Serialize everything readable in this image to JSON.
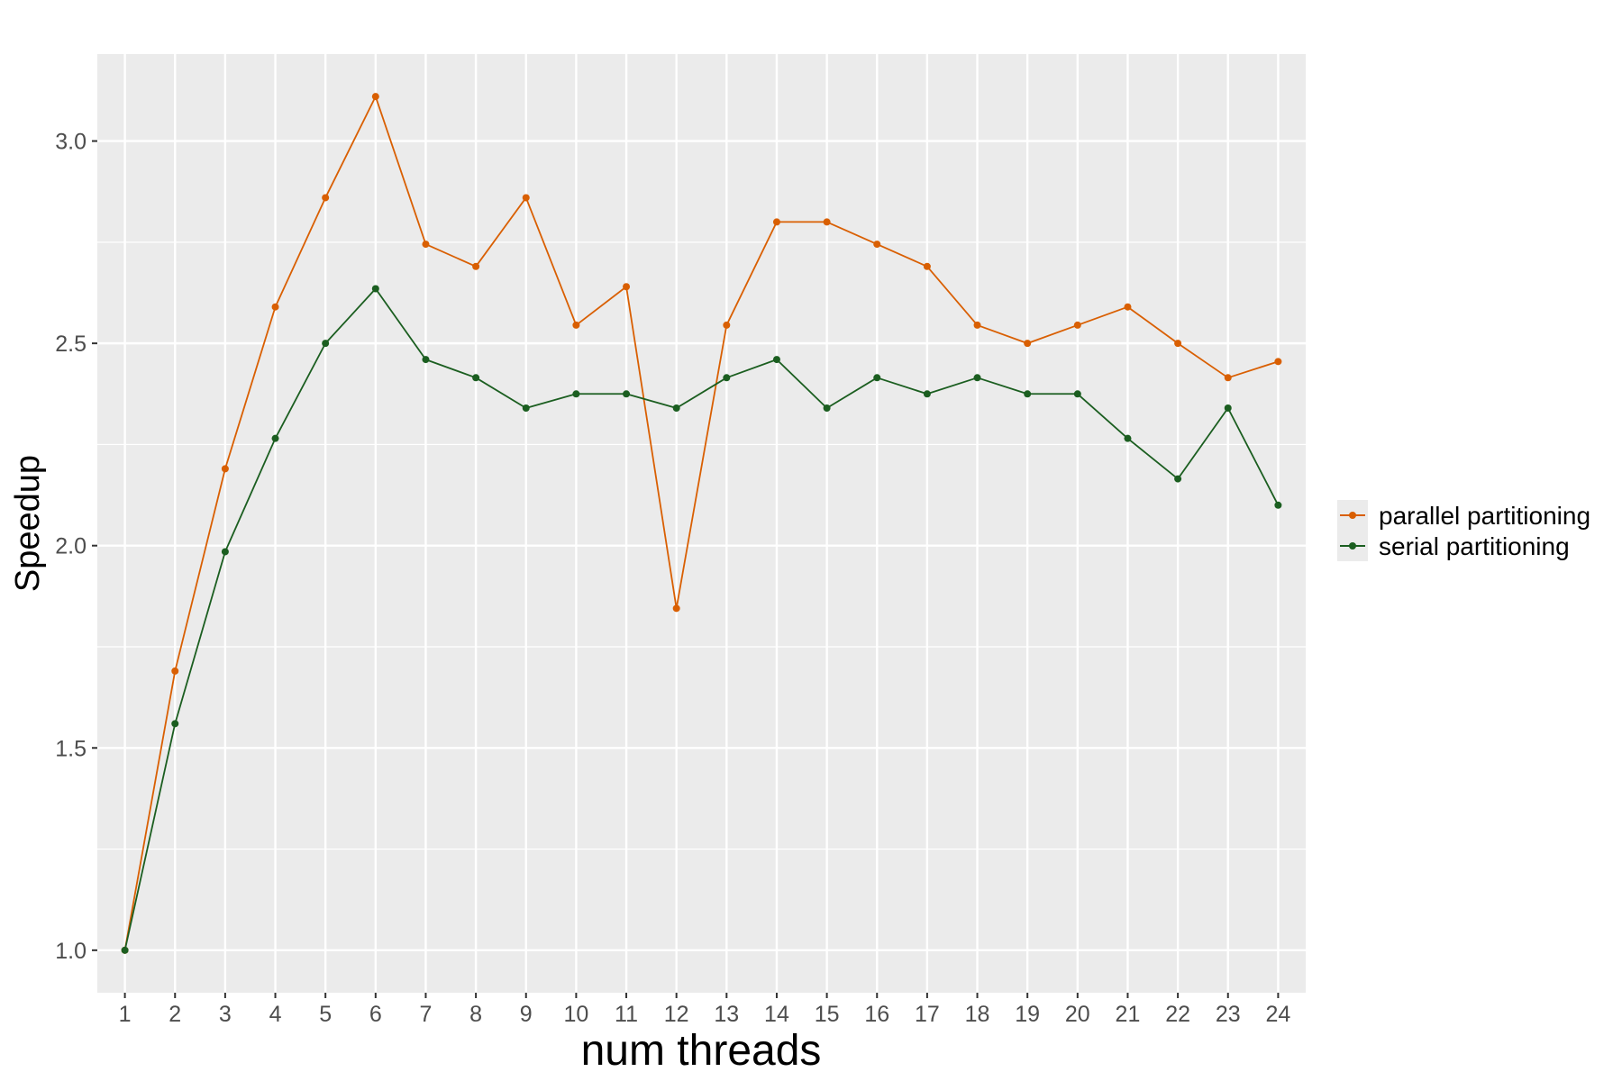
{
  "chart_data": {
    "type": "line",
    "xlabel": "num threads",
    "ylabel": "Speedup",
    "x": [
      1,
      2,
      3,
      4,
      5,
      6,
      7,
      8,
      9,
      10,
      11,
      12,
      13,
      14,
      15,
      16,
      17,
      18,
      19,
      20,
      21,
      22,
      23,
      24
    ],
    "x_tick_labels": [
      "1",
      "2",
      "3",
      "4",
      "5",
      "6",
      "7",
      "8",
      "9",
      "10",
      "11",
      "12",
      "13",
      "14",
      "15",
      "16",
      "17",
      "18",
      "19",
      "20",
      "21",
      "22",
      "23",
      "24"
    ],
    "y_ticks": [
      1.0,
      1.5,
      2.0,
      2.5,
      3.0
    ],
    "y_tick_labels": [
      "1.0",
      "1.5",
      "2.0",
      "2.5",
      "3.0"
    ],
    "xlim": [
      0.45,
      24.55
    ],
    "ylim": [
      0.895,
      3.215
    ],
    "grid": true,
    "legend_position": "right",
    "series": [
      {
        "name": "parallel partitioning",
        "color": "#d95f02",
        "values": [
          1.0,
          1.69,
          2.19,
          2.59,
          2.86,
          3.11,
          2.745,
          2.69,
          2.86,
          2.545,
          2.64,
          1.845,
          2.545,
          2.8,
          2.8,
          2.745,
          2.69,
          2.545,
          2.5,
          2.545,
          2.59,
          2.5,
          2.415,
          2.455
        ]
      },
      {
        "name": "serial partitioning",
        "color": "#1b5e20",
        "values": [
          1.0,
          1.56,
          1.985,
          2.265,
          2.5,
          2.635,
          2.46,
          2.415,
          2.34,
          2.375,
          2.375,
          2.34,
          2.415,
          2.46,
          2.34,
          2.415,
          2.375,
          2.415,
          2.375,
          2.375,
          2.265,
          2.165,
          2.34,
          2.1
        ]
      }
    ],
    "colors": {
      "panel_background": "#ebebeb",
      "grid": "#ffffff",
      "tick_text": "#4d4d4d"
    }
  }
}
